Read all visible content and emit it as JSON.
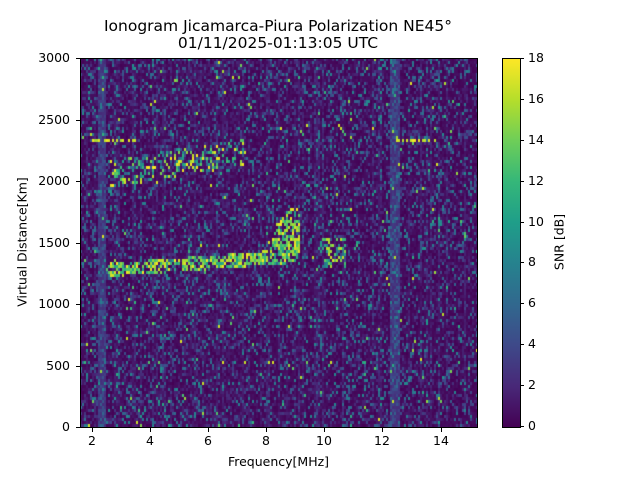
{
  "title_line1": "Ionogram Jicamarca-Piura Polarization NE45°",
  "title_line2": "01/11/2025-01:13:05 UTC",
  "x_axis": {
    "label": "Frequency[MHz]",
    "ticks": [
      {
        "value": 2,
        "label": "2"
      },
      {
        "value": 4,
        "label": "4"
      },
      {
        "value": 6,
        "label": "6"
      },
      {
        "value": 8,
        "label": "8"
      },
      {
        "value": 10,
        "label": "10"
      },
      {
        "value": 12,
        "label": "12"
      },
      {
        "value": 14,
        "label": "14"
      }
    ]
  },
  "y_axis": {
    "label": "Virtual Distance[Km]",
    "ticks": [
      {
        "value": 0,
        "label": "0"
      },
      {
        "value": 500,
        "label": "500"
      },
      {
        "value": 1000,
        "label": "1000"
      },
      {
        "value": 1500,
        "label": "1500"
      },
      {
        "value": 2000,
        "label": "2000"
      },
      {
        "value": 2500,
        "label": "2500"
      },
      {
        "value": 3000,
        "label": "3000"
      }
    ]
  },
  "colorbar": {
    "label": "SNR [dB]",
    "ticks": [
      {
        "value": 0,
        "label": "0"
      },
      {
        "value": 2,
        "label": "2"
      },
      {
        "value": 4,
        "label": "4"
      },
      {
        "value": 6,
        "label": "6"
      },
      {
        "value": 8,
        "label": "8"
      },
      {
        "value": 10,
        "label": "10"
      },
      {
        "value": 12,
        "label": "12"
      },
      {
        "value": 14,
        "label": "14"
      },
      {
        "value": 16,
        "label": "16"
      },
      {
        "value": 18,
        "label": "18"
      }
    ],
    "colormap": "viridis",
    "stops": [
      "#440154",
      "#482878",
      "#3e4989",
      "#31688e",
      "#26828e",
      "#1f9e89",
      "#35b779",
      "#6ece58",
      "#b5de2b",
      "#fde725"
    ]
  },
  "chart_data": {
    "type": "heatmap",
    "title": "Ionogram Jicamarca-Piura Polarization NE45° 01/11/2025-01:13:05 UTC",
    "xlabel": "Frequency[MHz]",
    "ylabel": "Virtual Distance[Km]",
    "colorbar_label": "SNR [dB]",
    "xlim": [
      1.6,
      15.25
    ],
    "ylim": [
      0,
      3000
    ],
    "clim": [
      0,
      18
    ],
    "colormap": "viridis",
    "grid": false,
    "features": [
      {
        "name": "F-layer trace (1-hop)",
        "freq_range_mhz": [
          2.5,
          9.1
        ],
        "virtual_distance_km": [
          1220,
          1350
        ],
        "snr_db": "16-18",
        "note": "echo rises toward ~1750 km near 9 MHz"
      },
      {
        "name": "F-layer trace spread segment",
        "freq_range_mhz": [
          9.8,
          10.7
        ],
        "virtual_distance_km": [
          1300,
          1550
        ],
        "snr_db": "10-16"
      },
      {
        "name": "Second-hop trace",
        "freq_range_mhz": [
          2.5,
          7.2
        ],
        "virtual_distance_km": [
          1950,
          2300
        ],
        "snr_db": "10-18"
      },
      {
        "name": "Horizontal interference line",
        "freq_range_mhz": [
          2.0,
          3.5
        ],
        "virtual_distance_km": [
          2330,
          2340
        ],
        "snr_db": "~18"
      },
      {
        "name": "Horizontal interference line",
        "freq_range_mhz": [
          12.3,
          13.8
        ],
        "virtual_distance_km": [
          2320,
          2335
        ],
        "snr_db": "~18"
      },
      {
        "name": "Vertical interference band",
        "freq_range_mhz": [
          2.2,
          2.4
        ],
        "virtual_distance_km": [
          0,
          3000
        ],
        "snr_db": "2-8"
      },
      {
        "name": "Vertical interference band",
        "freq_range_mhz": [
          12.3,
          12.5
        ],
        "virtual_distance_km": [
          0,
          3000
        ],
        "snr_db": "2-8"
      },
      {
        "name": "Background noise",
        "freq_range_mhz": [
          1.6,
          15.25
        ],
        "virtual_distance_km": [
          0,
          3000
        ],
        "snr_db": "0-3"
      }
    ]
  }
}
